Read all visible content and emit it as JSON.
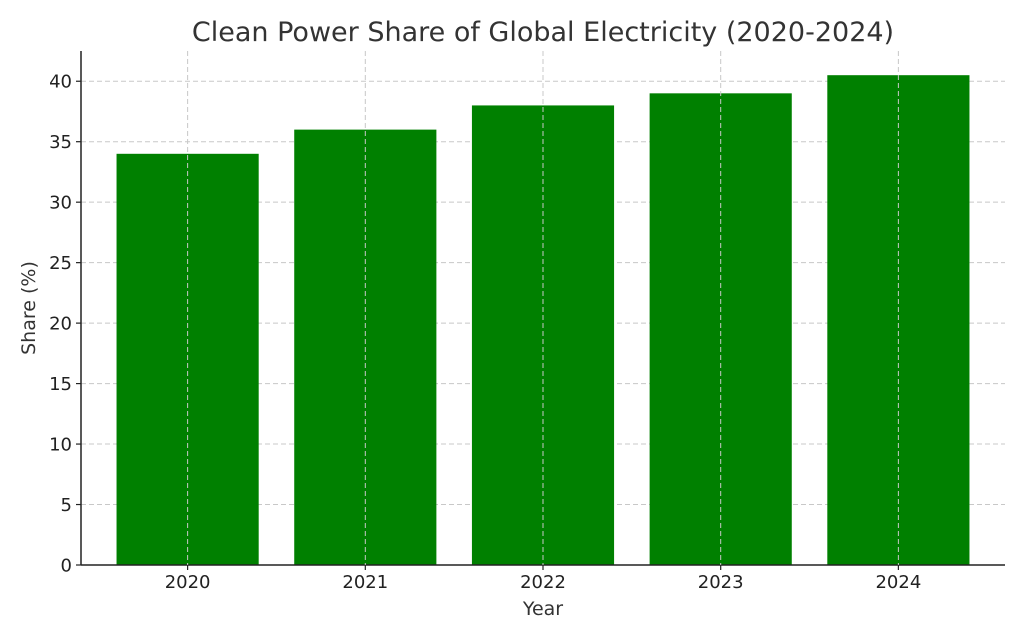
{
  "chart_data": {
    "type": "bar",
    "title": "Clean Power Share of Global Electricity (2020-2024)",
    "xlabel": "Year",
    "ylabel": "Share (%)",
    "categories": [
      "2020",
      "2021",
      "2022",
      "2023",
      "2024"
    ],
    "values": [
      34,
      36,
      38,
      39,
      40.5
    ],
    "ylim": [
      0,
      42.5
    ],
    "yticks": [
      0,
      5,
      10,
      15,
      20,
      25,
      30,
      35,
      40
    ],
    "grid": true,
    "bar_color": "#008000",
    "legend": "none"
  }
}
